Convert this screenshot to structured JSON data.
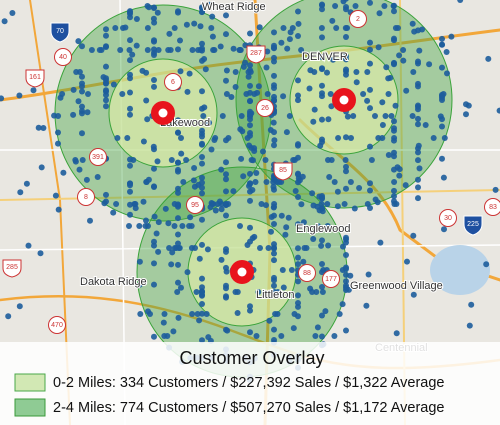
{
  "map": {
    "places": [
      "Wheat Ridge",
      "DENVER",
      "Lakewood",
      "Englewood",
      "Dakota Ridge",
      "Littleton",
      "Greenwood Village",
      "Centennial"
    ],
    "highways": [
      "70",
      "40",
      "161",
      "6",
      "287",
      "2",
      "26",
      "391",
      "85",
      "8",
      "95",
      "30",
      "225",
      "83",
      "285",
      "88",
      "177",
      "470"
    ]
  },
  "legend": {
    "title": "Customer Overlay",
    "items": [
      {
        "label": "0-2 Miles: 334 Customers / $227,392 Sales / $1,322 Average"
      },
      {
        "label": "2-4 Miles: 774 Customers / $507,270 Sales / $1,172 Average"
      }
    ]
  }
}
